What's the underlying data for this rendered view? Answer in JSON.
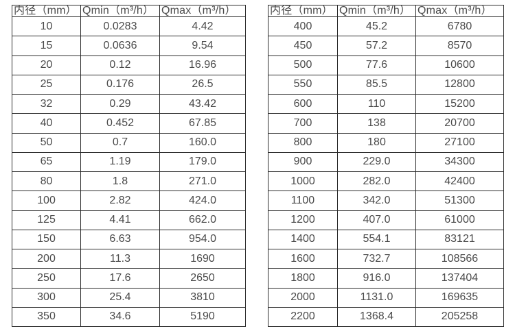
{
  "colors": {
    "background": "#ffffff",
    "border": "#2b2b2b",
    "text": "#4a4a4a"
  },
  "chart_data": [
    {
      "type": "table",
      "title": "",
      "columns": [
        "内径（mm）",
        "Qmin（m³/h）",
        "Qmax（m³/h）"
      ],
      "rows": [
        [
          "10",
          "0.0283",
          "4.42"
        ],
        [
          "15",
          "0.0636",
          "9.54"
        ],
        [
          "20",
          "0.12",
          "16.96"
        ],
        [
          "25",
          "0.176",
          "26.5"
        ],
        [
          "32",
          "0.29",
          "43.42"
        ],
        [
          "40",
          "0.452",
          "67.85"
        ],
        [
          "50",
          "0.7",
          "160.0"
        ],
        [
          "65",
          "1.19",
          "179.0"
        ],
        [
          "80",
          "1.8",
          "271.0"
        ],
        [
          "100",
          "2.82",
          "424.0"
        ],
        [
          "125",
          "4.41",
          "662.0"
        ],
        [
          "150",
          "6.63",
          "954.0"
        ],
        [
          "200",
          "11.3",
          "1690"
        ],
        [
          "250",
          "17.6",
          "2650"
        ],
        [
          "300",
          "25.4",
          "3810"
        ],
        [
          "350",
          "34.6",
          "5190"
        ]
      ]
    },
    {
      "type": "table",
      "title": "",
      "columns": [
        "内径（mm）",
        "Qmin（m³/h）",
        "Qmax（m³/h）"
      ],
      "rows": [
        [
          "400",
          "45.2",
          "6780"
        ],
        [
          "450",
          "57.2",
          "8570"
        ],
        [
          "500",
          "77.6",
          "10600"
        ],
        [
          "550",
          "85.5",
          "12800"
        ],
        [
          "600",
          "110",
          "15200"
        ],
        [
          "700",
          "138",
          "20700"
        ],
        [
          "800",
          "180",
          "27100"
        ],
        [
          "900",
          "229.0",
          "34300"
        ],
        [
          "1000",
          "282.0",
          "42400"
        ],
        [
          "1100",
          "342.0",
          "51300"
        ],
        [
          "1200",
          "407.0",
          "61000"
        ],
        [
          "1400",
          "554.1",
          "83121"
        ],
        [
          "1600",
          "732.7",
          "108566"
        ],
        [
          "1800",
          "916.0",
          "137404"
        ],
        [
          "2000",
          "1131.0",
          "169635"
        ],
        [
          "2200",
          "1368.4",
          "205258"
        ]
      ]
    }
  ]
}
